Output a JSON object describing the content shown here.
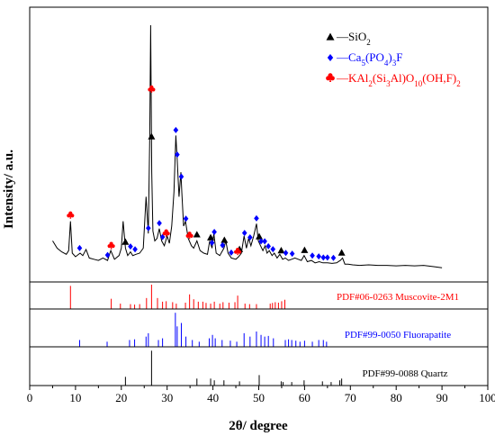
{
  "chart_data": {
    "type": "line",
    "xlabel": "2θ/ degree",
    "ylabel": "Intensity/ a.u.",
    "xlim": [
      0,
      100
    ],
    "x_ticks": [
      0,
      10,
      20,
      30,
      40,
      50,
      60,
      70,
      80,
      90,
      100
    ],
    "grid": false,
    "legend_placement": "top-right",
    "colors": {
      "pattern": "#000000",
      "quartz": "#000000",
      "fluorapatite": "#0000ff",
      "muscovite": "#ff0000"
    },
    "legend": [
      {
        "marker": "triangle",
        "color": "#000000",
        "label": "—SiO",
        "sub1": "2",
        "rest1": "",
        "sub2": "",
        "rest2": "",
        "sub3": "",
        "rest3": "",
        "sub4": "",
        "rest4": ""
      },
      {
        "marker": "diamond",
        "color": "#0000ff",
        "label": "—Ca",
        "sub1": "5",
        "rest1": "(PO",
        "sub2": "4",
        "rest2": ")",
        "sub3": "3",
        "rest3": "F",
        "sub4": "",
        "rest4": ""
      },
      {
        "marker": "club",
        "color": "#ff0000",
        "label": "—KAl",
        "sub1": "2",
        "rest1": "(Si",
        "sub2": "3",
        "rest2": "Al)O",
        "sub3": "10",
        "rest3": "(OH,F)",
        "sub4": "2",
        "rest4": ""
      }
    ],
    "pattern": {
      "x": [
        5.0,
        6.0,
        7.0,
        8.0,
        8.5,
        8.9,
        9.3,
        10.0,
        11.0,
        11.6,
        12.3,
        13.0,
        14.0,
        15.0,
        16.0,
        17.0,
        17.7,
        18.5,
        19.5,
        20.0,
        20.4,
        20.9,
        21.4,
        22.0,
        22.5,
        23.2,
        24.0,
        24.8,
        25.4,
        25.9,
        26.2,
        26.4,
        26.65,
        26.9,
        27.3,
        27.8,
        28.3,
        28.8,
        29.4,
        30.0,
        30.5,
        31.0,
        31.5,
        31.9,
        32.2,
        32.6,
        33.0,
        33.2,
        33.6,
        34.0,
        34.6,
        35.3,
        35.8,
        36.5,
        37.2,
        38.0,
        38.8,
        39.3,
        39.8,
        40.2,
        40.7,
        41.5,
        42.4,
        42.8,
        43.3,
        44.0,
        45.0,
        45.6,
        46.2,
        46.8,
        47.3,
        47.8,
        48.3,
        48.9,
        49.5,
        49.9,
        50.4,
        50.9,
        51.4,
        51.8,
        52.3,
        52.9,
        53.4,
        54.0,
        54.6,
        55.2,
        55.8,
        56.5,
        57.2,
        57.9,
        58.6,
        59.3,
        59.9,
        60.6,
        61.5,
        62.3,
        63.2,
        64.0,
        65.0,
        66.0,
        67.0,
        67.8,
        68.3,
        68.8,
        69.5,
        70.5,
        72.0,
        74.0,
        76.0,
        78.0,
        80.0,
        82.0,
        84.0,
        86.0,
        88.0,
        90.0
      ],
      "y": [
        0.12,
        0.09,
        0.075,
        0.065,
        0.08,
        0.2,
        0.07,
        0.055,
        0.07,
        0.06,
        0.085,
        0.05,
        0.045,
        0.04,
        0.05,
        0.04,
        0.08,
        0.045,
        0.06,
        0.09,
        0.2,
        0.09,
        0.06,
        0.075,
        0.06,
        0.065,
        0.07,
        0.09,
        0.3,
        0.15,
        0.55,
        1.0,
        0.4,
        0.16,
        0.12,
        0.13,
        0.17,
        0.12,
        0.1,
        0.14,
        0.11,
        0.18,
        0.32,
        0.55,
        0.45,
        0.3,
        0.4,
        0.32,
        0.18,
        0.2,
        0.13,
        0.1,
        0.09,
        0.12,
        0.08,
        0.07,
        0.065,
        0.12,
        0.09,
        0.15,
        0.07,
        0.06,
        0.09,
        0.12,
        0.07,
        0.05,
        0.045,
        0.055,
        0.07,
        0.14,
        0.09,
        0.13,
        0.1,
        0.14,
        0.19,
        0.12,
        0.1,
        0.08,
        0.1,
        0.07,
        0.08,
        0.06,
        0.07,
        0.05,
        0.065,
        0.045,
        0.05,
        0.04,
        0.045,
        0.05,
        0.045,
        0.04,
        0.06,
        0.035,
        0.04,
        0.03,
        0.035,
        0.03,
        0.03,
        0.028,
        0.03,
        0.04,
        0.05,
        0.025,
        0.025,
        0.022,
        0.02,
        0.022,
        0.02,
        0.02,
        0.018,
        0.02,
        0.018,
        0.02,
        0.015,
        0.01
      ]
    },
    "peak_markers": {
      "SiO2": [
        20.9,
        26.6,
        36.5,
        39.5,
        42.5,
        45.8,
        50.1,
        54.9,
        60.0,
        68.1
      ],
      "Ca5(PO4)3F": [
        10.9,
        17.0,
        22.0,
        23.0,
        25.9,
        28.3,
        29.0,
        31.9,
        32.2,
        33.1,
        34.1,
        39.8,
        40.3,
        42.1,
        44.0,
        46.9,
        48.1,
        49.5,
        50.5,
        51.3,
        52.1,
        53.1,
        55.9,
        57.3,
        61.7,
        63.1,
        64.1,
        65.0,
        66.3
      ],
      "KAl2(Si3Al)O10(OH,F)2": [
        8.9,
        17.8,
        26.6,
        29.8,
        34.9,
        45.4
      ]
    },
    "reference_panels": [
      {
        "label": "PDF#06-0263  Muscovite-2M1",
        "lines": [
          {
            "x": 8.9,
            "h": 0.95
          },
          {
            "x": 17.8,
            "h": 0.42
          },
          {
            "x": 19.8,
            "h": 0.22
          },
          {
            "x": 22.0,
            "h": 0.2
          },
          {
            "x": 22.9,
            "h": 0.18
          },
          {
            "x": 24.0,
            "h": 0.2
          },
          {
            "x": 25.5,
            "h": 0.45
          },
          {
            "x": 26.6,
            "h": 1.0
          },
          {
            "x": 27.9,
            "h": 0.45
          },
          {
            "x": 29.0,
            "h": 0.3
          },
          {
            "x": 29.8,
            "h": 0.32
          },
          {
            "x": 31.2,
            "h": 0.28
          },
          {
            "x": 32.0,
            "h": 0.22
          },
          {
            "x": 34.0,
            "h": 0.26
          },
          {
            "x": 34.9,
            "h": 0.6
          },
          {
            "x": 35.8,
            "h": 0.4
          },
          {
            "x": 36.8,
            "h": 0.3
          },
          {
            "x": 37.8,
            "h": 0.3
          },
          {
            "x": 38.5,
            "h": 0.25
          },
          {
            "x": 39.5,
            "h": 0.22
          },
          {
            "x": 40.3,
            "h": 0.3
          },
          {
            "x": 41.5,
            "h": 0.22
          },
          {
            "x": 42.2,
            "h": 0.28
          },
          {
            "x": 43.5,
            "h": 0.26
          },
          {
            "x": 44.8,
            "h": 0.28
          },
          {
            "x": 45.4,
            "h": 0.55
          },
          {
            "x": 47.0,
            "h": 0.22
          },
          {
            "x": 48.0,
            "h": 0.2
          },
          {
            "x": 49.5,
            "h": 0.2
          },
          {
            "x": 52.5,
            "h": 0.22
          },
          {
            "x": 53.0,
            "h": 0.25
          },
          {
            "x": 53.6,
            "h": 0.28
          },
          {
            "x": 54.3,
            "h": 0.26
          },
          {
            "x": 55.0,
            "h": 0.32
          },
          {
            "x": 55.7,
            "h": 0.38
          }
        ]
      },
      {
        "label": "PDF#99-0050  Fluorapatite",
        "lines": [
          {
            "x": 10.9,
            "h": 0.2
          },
          {
            "x": 16.9,
            "h": 0.15
          },
          {
            "x": 21.8,
            "h": 0.2
          },
          {
            "x": 22.9,
            "h": 0.22
          },
          {
            "x": 25.4,
            "h": 0.3
          },
          {
            "x": 25.9,
            "h": 0.4
          },
          {
            "x": 28.1,
            "h": 0.2
          },
          {
            "x": 29.0,
            "h": 0.25
          },
          {
            "x": 31.8,
            "h": 1.0
          },
          {
            "x": 32.2,
            "h": 0.6
          },
          {
            "x": 33.1,
            "h": 0.7
          },
          {
            "x": 34.1,
            "h": 0.3
          },
          {
            "x": 35.5,
            "h": 0.2
          },
          {
            "x": 37.0,
            "h": 0.15
          },
          {
            "x": 39.2,
            "h": 0.25
          },
          {
            "x": 39.9,
            "h": 0.35
          },
          {
            "x": 40.5,
            "h": 0.25
          },
          {
            "x": 42.0,
            "h": 0.2
          },
          {
            "x": 43.8,
            "h": 0.18
          },
          {
            "x": 45.2,
            "h": 0.15
          },
          {
            "x": 46.8,
            "h": 0.4
          },
          {
            "x": 48.1,
            "h": 0.3
          },
          {
            "x": 49.5,
            "h": 0.45
          },
          {
            "x": 50.5,
            "h": 0.35
          },
          {
            "x": 51.3,
            "h": 0.3
          },
          {
            "x": 52.1,
            "h": 0.32
          },
          {
            "x": 53.2,
            "h": 0.25
          },
          {
            "x": 55.8,
            "h": 0.2
          },
          {
            "x": 56.5,
            "h": 0.22
          },
          {
            "x": 57.2,
            "h": 0.2
          },
          {
            "x": 58.1,
            "h": 0.18
          },
          {
            "x": 59.0,
            "h": 0.15
          },
          {
            "x": 60.0,
            "h": 0.18
          },
          {
            "x": 61.7,
            "h": 0.15
          },
          {
            "x": 63.1,
            "h": 0.2
          },
          {
            "x": 64.1,
            "h": 0.2
          },
          {
            "x": 64.8,
            "h": 0.15
          }
        ]
      },
      {
        "label": "PDF#99-0088  Quartz",
        "lines": [
          {
            "x": 20.9,
            "h": 0.25
          },
          {
            "x": 26.6,
            "h": 1.0
          },
          {
            "x": 36.5,
            "h": 0.2
          },
          {
            "x": 39.5,
            "h": 0.2
          },
          {
            "x": 40.3,
            "h": 0.15
          },
          {
            "x": 42.4,
            "h": 0.15
          },
          {
            "x": 45.8,
            "h": 0.12
          },
          {
            "x": 50.1,
            "h": 0.3
          },
          {
            "x": 54.9,
            "h": 0.12
          },
          {
            "x": 55.3,
            "h": 0.1
          },
          {
            "x": 57.2,
            "h": 0.1
          },
          {
            "x": 59.9,
            "h": 0.15
          },
          {
            "x": 63.9,
            "h": 0.12
          },
          {
            "x": 65.8,
            "h": 0.1
          },
          {
            "x": 67.7,
            "h": 0.15
          },
          {
            "x": 68.1,
            "h": 0.2
          }
        ]
      }
    ]
  }
}
